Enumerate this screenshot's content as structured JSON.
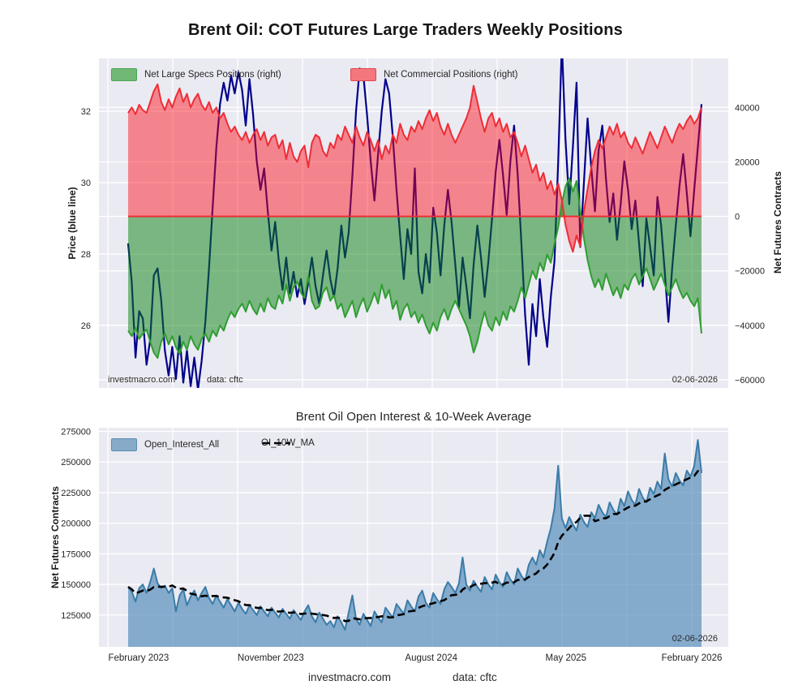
{
  "figure": {
    "title": "Brent Oil: COT Futures Large Traders Weekly Positions",
    "footer_site": "investmacro.com",
    "footer_source": "data: cftc"
  },
  "colors": {
    "page_bg": "#ffffff",
    "axes_bg": "#eaeaf2",
    "grid": "#ffffff",
    "price_line": "#00008b",
    "commercial_fill": "rgba(255,8,20,0.45)",
    "commercial_line": "#ef2d35",
    "specs_fill": "rgba(10,130,15,0.5)",
    "specs_line": "#2f9e30",
    "oi_fill": "rgba(70,130,180,0.62)",
    "oi_line": "#3a7ca8",
    "ma_line": "#000000",
    "specs_swatch": "#72b875",
    "specs_swatch_border": "#4ca454",
    "commercial_swatch": "#f4777e",
    "commercial_swatch_border": "#e0474f",
    "oi_swatch": "#86aac7",
    "oi_swatch_border": "#5b8fb0"
  },
  "chart_data": [
    {
      "type": "area",
      "title": "Brent Oil: COT Futures Large Traders Weekly Positions",
      "ylabel_left": "Price (blue line)",
      "ylabel_right": "Net Futures Contracts",
      "watermark": "investmacro.com",
      "source_note": "data: cftc",
      "date_note": "02-06-2026",
      "legend": [
        {
          "label": "Net Large Specs Positions (right)"
        },
        {
          "label": "Net Commercial Positions (right)"
        }
      ],
      "x_range": [
        "February 2023",
        "February 2026"
      ],
      "x_start_frac": 0.0464,
      "x_end_frac": 0.9575,
      "ylim_left": [
        24.25,
        33.48
      ],
      "ylim_right": [
        -63000,
        58000
      ],
      "yticks_left": [
        {
          "label": "32",
          "value": 32
        },
        {
          "label": "30",
          "value": 30
        },
        {
          "label": "28",
          "value": 28
        },
        {
          "label": "26",
          "value": 26
        }
      ],
      "yticks_right": [
        {
          "label": "40000",
          "value": 40000
        },
        {
          "label": "20000",
          "value": 20000
        },
        {
          "label": "0",
          "value": 0
        },
        {
          "label": "−20000",
          "value": -20000
        },
        {
          "label": "−40000",
          "value": -40000
        },
        {
          "label": "−60000",
          "value": -60000
        }
      ],
      "series": {
        "price": {
          "name": "Price (blue line)",
          "axis": "left",
          "values": [
            28.3,
            27.2,
            25.1,
            26.4,
            26.2,
            24.9,
            25.6,
            27.4,
            27.6,
            26.7,
            25.3,
            24.6,
            25.4,
            24.5,
            25.7,
            24.4,
            25.3,
            24.3,
            25.1,
            24.2,
            25.0,
            26.1,
            27.6,
            29.3,
            31.0,
            32.2,
            32.8,
            32.3,
            33.0,
            32.5,
            33.1,
            32.6,
            31.6,
            32.9,
            31.9,
            30.6,
            29.8,
            30.4,
            29.2,
            28.1,
            28.9,
            27.8,
            27.0,
            27.9,
            26.9,
            27.5,
            26.8,
            27.3,
            26.6,
            27.2,
            27.9,
            27.1,
            26.6,
            27.4,
            28.1,
            27.3,
            26.8,
            27.6,
            28.8,
            27.9,
            28.6,
            30.2,
            32.0,
            33.2,
            33.0,
            31.9,
            30.6,
            29.5,
            30.8,
            32.0,
            32.9,
            32.5,
            31.3,
            29.8,
            28.5,
            27.3,
            28.7,
            28.0,
            30.4,
            27.5,
            26.9,
            28.0,
            27.2,
            29.3,
            28.6,
            27.4,
            28.8,
            29.8,
            28.9,
            27.7,
            26.5,
            27.9,
            27.1,
            26.2,
            27.7,
            28.8,
            27.9,
            26.8,
            27.8,
            29.0,
            30.3,
            31.2,
            30.2,
            29.1,
            30.6,
            31.6,
            30.2,
            28.3,
            26.3,
            24.9,
            26.6,
            25.7,
            27.3,
            26.2,
            25.4,
            26.8,
            27.8,
            30.6,
            33.9,
            31.2,
            29.4,
            31.0,
            32.8,
            28.2,
            30.0,
            31.8,
            30.4,
            29.2,
            30.9,
            31.6,
            30.1,
            28.9,
            29.7,
            28.4,
            29.4,
            30.6,
            29.8,
            28.7,
            29.5,
            28.3,
            27.1,
            29.0,
            28.2,
            27.4,
            29.6,
            28.8,
            27.5,
            26.1,
            27.6,
            28.8,
            29.9,
            30.8,
            29.7,
            28.5,
            29.8,
            31.0,
            32.2
          ]
        },
        "commercials": {
          "name": "Net Commercial Positions",
          "axis": "right",
          "unit_scale": 1000,
          "values_k": [
            38,
            40,
            37.5,
            41,
            39,
            38,
            42,
            46,
            48.5,
            42,
            39,
            43,
            40,
            44,
            47,
            42,
            45,
            40,
            43,
            45,
            41,
            39,
            42,
            38,
            40,
            36,
            38,
            34,
            31,
            33,
            30,
            28,
            31,
            27,
            30,
            32,
            28,
            31,
            26,
            29,
            30,
            25,
            28,
            21,
            27,
            22,
            20,
            24,
            26,
            18,
            27,
            30,
            29,
            24,
            22,
            27,
            25,
            30,
            28,
            33,
            30,
            27,
            33,
            29,
            26,
            31,
            28,
            24,
            28,
            21,
            26,
            23,
            30,
            27,
            34,
            30,
            28,
            33,
            31,
            35,
            32,
            36,
            39,
            35,
            38,
            33,
            30,
            34,
            30,
            27,
            30,
            33,
            36,
            40,
            48,
            42,
            36,
            31,
            36,
            38,
            33,
            36,
            31,
            34,
            29,
            31,
            27,
            22,
            26,
            21,
            16,
            19,
            13,
            16,
            10,
            13,
            8,
            12,
            6,
            -3,
            -9,
            -13,
            -7,
            -11,
            2,
            10,
            18,
            24,
            28,
            25,
            29,
            33,
            30,
            34,
            29,
            31,
            27,
            25,
            29,
            26,
            23,
            27,
            31,
            28,
            25,
            29,
            33,
            30,
            27,
            31,
            34,
            32,
            35,
            37,
            34,
            36,
            40
          ]
        },
        "large_specs": {
          "name": "Net Large Specs Positions",
          "axis": "right",
          "unit_scale": 1000,
          "values_k": [
            -42,
            -44,
            -41,
            -45,
            -43,
            -41.5,
            -46,
            -50,
            -52,
            -46,
            -43,
            -47,
            -44,
            -48,
            -50.5,
            -46,
            -49,
            -44,
            -47,
            -49,
            -45,
            -43,
            -46,
            -42,
            -44,
            -40,
            -42,
            -38,
            -35,
            -37,
            -34,
            -32,
            -35,
            -31,
            -34,
            -36,
            -32,
            -35,
            -30,
            -33,
            -34,
            -29,
            -32,
            -25,
            -31,
            -26,
            -24,
            -28,
            -30,
            -22,
            -31,
            -34,
            -33,
            -28,
            -26,
            -31,
            -29,
            -34,
            -32,
            -37,
            -34,
            -31,
            -37,
            -33,
            -30,
            -35,
            -32,
            -28,
            -32,
            -25,
            -30,
            -27,
            -34,
            -31,
            -38,
            -34,
            -32,
            -37,
            -35,
            -39,
            -36,
            -40,
            -43,
            -39,
            -42,
            -37,
            -34,
            -38,
            -34,
            -31,
            -34,
            -37,
            -40,
            -44,
            -50,
            -46,
            -40,
            -35,
            -40,
            -42,
            -37,
            -40,
            -35,
            -38,
            -33,
            -35,
            -31,
            -26,
            -30,
            -25,
            -20,
            -23,
            -17,
            -20,
            -14,
            -17,
            -10,
            -4,
            5,
            11,
            14,
            9,
            13,
            2,
            -8,
            -16,
            -22,
            -26,
            -23,
            -27,
            -21,
            -25,
            -29,
            -26,
            -30,
            -25,
            -27,
            -23,
            -21,
            -25,
            -22,
            -19,
            -23,
            -27,
            -24,
            -21,
            -25,
            -29,
            -26,
            -23,
            -27,
            -30,
            -28,
            -31,
            -33,
            -30,
            -43
          ]
        }
      }
    },
    {
      "type": "area",
      "title": "Brent Oil Open Interest & 10-Week Average",
      "ylabel": "Net Futures Contracts",
      "date_note": "02-06-2026",
      "legend": [
        {
          "label": "Open_Interest_All"
        },
        {
          "label": "OI_10W_MA"
        }
      ],
      "x_start_frac": 0.0464,
      "x_end_frac": 0.9575,
      "ylim": [
        99000,
        278000
      ],
      "yticks": [
        {
          "label": "275000",
          "value": 275000
        },
        {
          "label": "250000",
          "value": 250000
        },
        {
          "label": "225000",
          "value": 225000
        },
        {
          "label": "200000",
          "value": 200000
        },
        {
          "label": "175000",
          "value": 175000
        },
        {
          "label": "150000",
          "value": 150000
        },
        {
          "label": "125000",
          "value": 125000
        }
      ],
      "xticks": [
        {
          "label": "February 2023",
          "pos": 0.063
        },
        {
          "label": "November 2023",
          "pos": 0.273
        },
        {
          "label": "August 2024",
          "pos": 0.528
        },
        {
          "label": "May 2025",
          "pos": 0.742
        },
        {
          "label": "February 2026",
          "pos": 0.942
        }
      ],
      "series": {
        "open_interest": {
          "name": "Open_Interest_All",
          "unit_scale": 1000,
          "values_k": [
            148,
            144,
            136,
            147,
            150,
            143,
            152,
            163,
            151,
            147,
            149,
            143,
            147,
            128,
            141,
            146,
            133,
            140,
            145,
            137,
            143,
            148,
            139,
            134,
            141,
            136,
            131,
            138,
            133,
            128,
            135,
            130,
            126,
            133,
            129,
            125,
            132,
            128,
            124,
            131,
            127,
            123,
            130,
            126,
            122,
            129,
            125,
            121,
            128,
            133,
            124,
            119,
            127,
            122,
            117,
            120,
            115,
            124,
            119,
            113,
            127,
            141,
            122,
            117,
            126,
            121,
            116,
            128,
            123,
            119,
            131,
            127,
            123,
            134,
            130,
            126,
            137,
            132,
            128,
            140,
            145,
            135,
            131,
            143,
            138,
            134,
            146,
            152,
            148,
            143,
            151,
            172,
            150,
            145,
            153,
            148,
            144,
            156,
            150,
            146,
            158,
            152,
            148,
            160,
            154,
            150,
            163,
            157,
            153,
            166,
            172,
            166,
            178,
            172,
            185,
            196,
            212,
            247,
            204,
            196,
            205,
            199,
            194,
            207,
            201,
            197,
            209,
            204,
            215,
            209,
            205,
            217,
            211,
            207,
            220,
            214,
            226,
            219,
            215,
            228,
            221,
            217,
            229,
            224,
            234,
            228,
            257,
            236,
            230,
            241,
            235,
            231,
            243,
            238,
            247,
            268,
            241
          ]
        },
        "ma": {
          "name": "OI_10W_MA",
          "window": 10,
          "derived_from": "open_interest"
        }
      }
    }
  ]
}
